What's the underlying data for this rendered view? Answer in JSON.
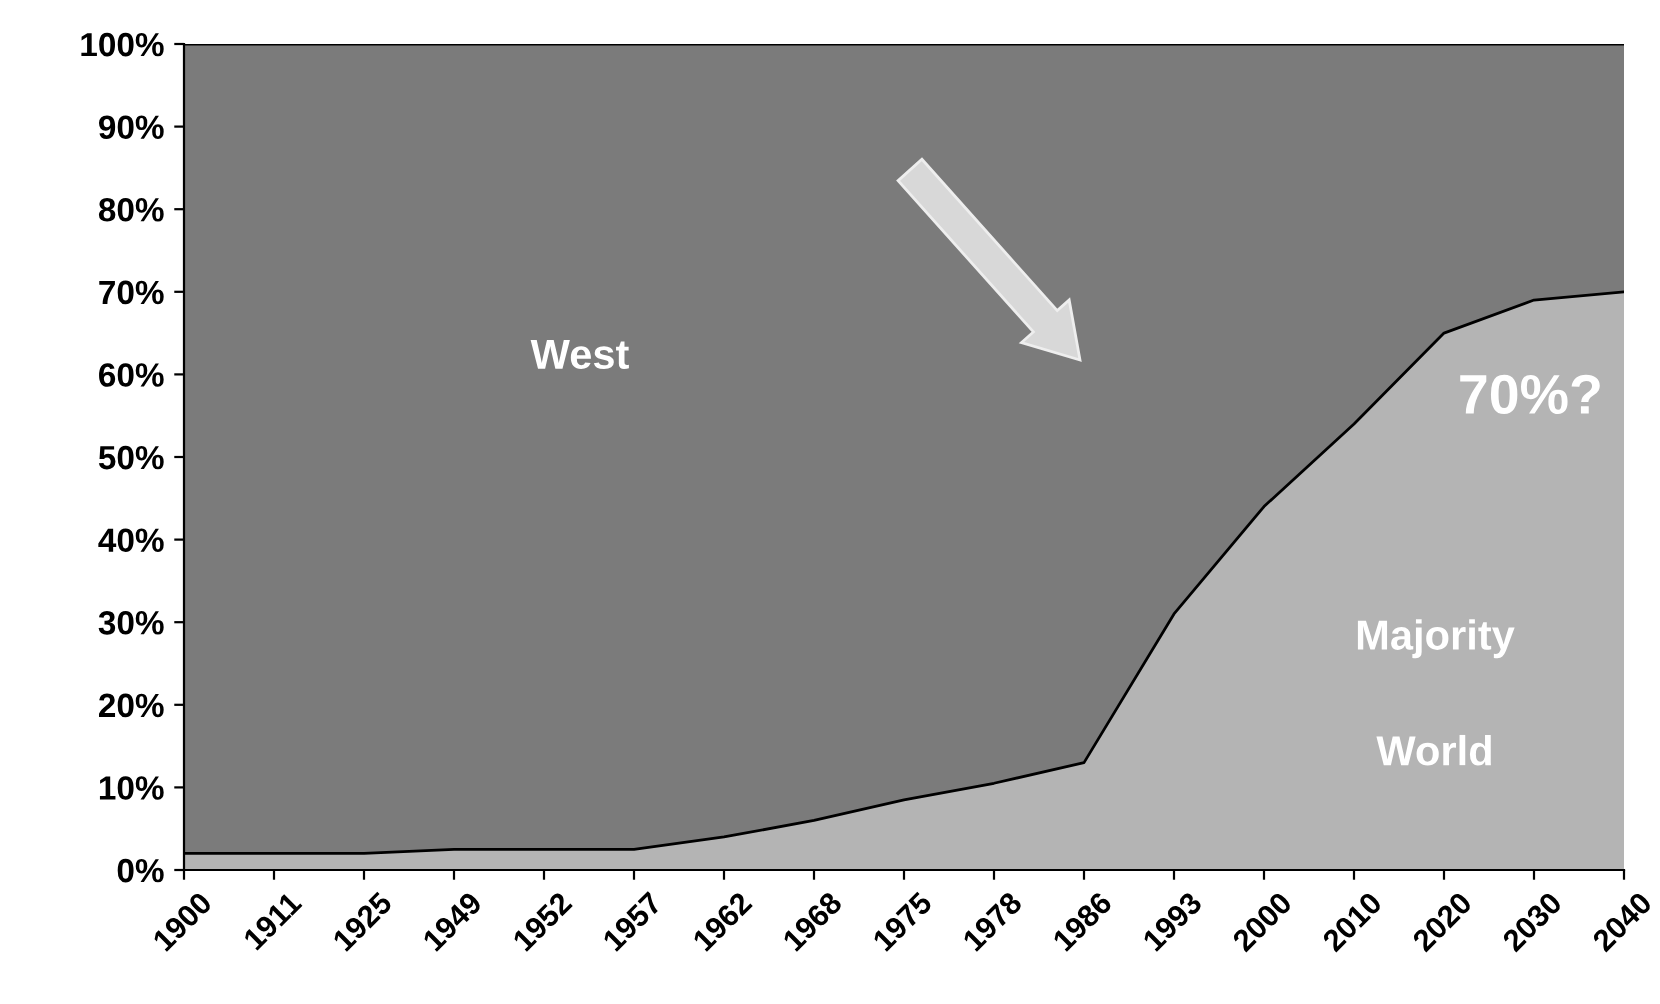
{
  "chart_data": {
    "type": "area",
    "stacked": true,
    "categories": [
      "1900",
      "1911",
      "1925",
      "1949",
      "1952",
      "1957",
      "1962",
      "1968",
      "1975",
      "1978",
      "1986",
      "1993",
      "2000",
      "2010",
      "2020",
      "2030",
      "2040"
    ],
    "series": [
      {
        "name": "Majority World",
        "color": "#b4b4b4",
        "values": [
          2,
          2,
          2,
          2.5,
          2.5,
          2.5,
          4,
          6,
          8.5,
          10.5,
          13,
          31,
          44,
          54,
          65,
          69,
          70
        ]
      },
      {
        "name": "West",
        "color": "#7b7b7b",
        "values": [
          98,
          98,
          98,
          97.5,
          97.5,
          97.5,
          96,
          94,
          91.5,
          89.5,
          87,
          69,
          56,
          46,
          35,
          31,
          30
        ]
      }
    ],
    "ylim": [
      0,
      100
    ],
    "yticks": [
      {
        "value": 0,
        "label": "0%"
      },
      {
        "value": 10,
        "label": "10%"
      },
      {
        "value": 20,
        "label": "20%"
      },
      {
        "value": 30,
        "label": "30%"
      },
      {
        "value": 40,
        "label": "40%"
      },
      {
        "value": 50,
        "label": "50%"
      },
      {
        "value": 60,
        "label": "60%"
      },
      {
        "value": 70,
        "label": "70%"
      },
      {
        "value": 80,
        "label": "80%"
      },
      {
        "value": 90,
        "label": "90%"
      },
      {
        "value": 100,
        "label": "100%"
      }
    ],
    "annotations": [
      "70%?"
    ],
    "grid": false,
    "legend": false
  }
}
